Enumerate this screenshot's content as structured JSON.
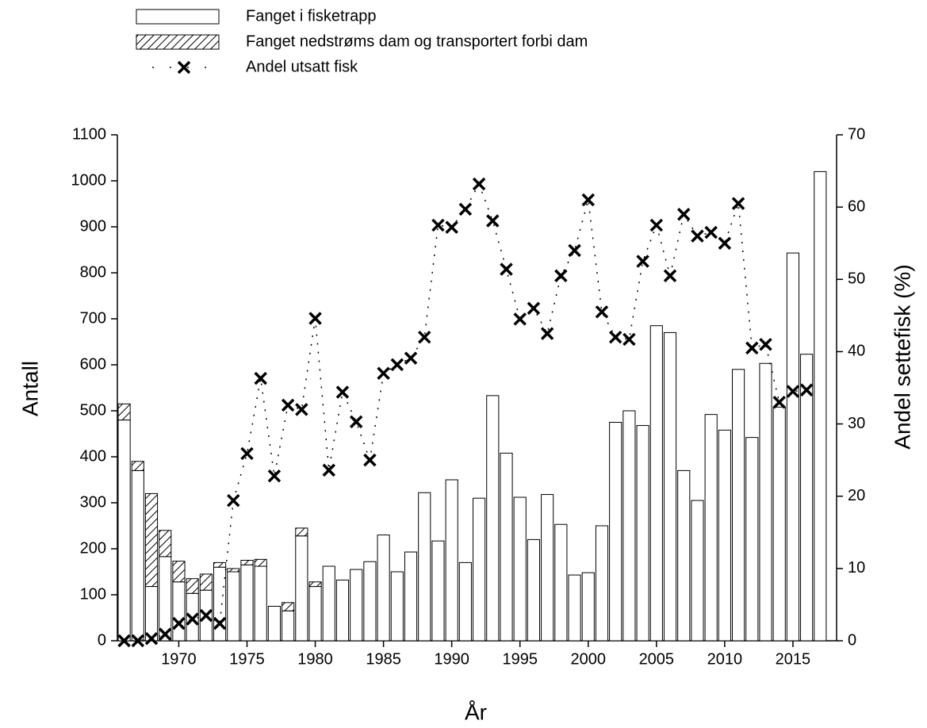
{
  "chart_data": {
    "type": "bar",
    "xlabel": "År",
    "ylabel": "Antall",
    "y2label": "Andel settefisk (%)",
    "x": [
      1966,
      1967,
      1968,
      1969,
      1970,
      1971,
      1972,
      1973,
      1974,
      1975,
      1976,
      1977,
      1978,
      1979,
      1980,
      1981,
      1982,
      1983,
      1984,
      1985,
      1986,
      1987,
      1988,
      1989,
      1990,
      1991,
      1992,
      1993,
      1994,
      1995,
      1996,
      1997,
      1998,
      1999,
      2000,
      2001,
      2002,
      2003,
      2004,
      2005,
      2006,
      2007,
      2008,
      2009,
      2010,
      2011,
      2012,
      2013,
      2014,
      2015,
      2016,
      2017
    ],
    "series": [
      {
        "name": "Fanget i fisketrapp",
        "color": "#ffffff",
        "stack": true,
        "values": [
          480,
          370,
          118,
          183,
          128,
          103,
          110,
          160,
          150,
          165,
          162,
          75,
          65,
          228,
          118,
          162,
          132,
          155,
          172,
          230,
          150,
          193,
          322,
          217,
          350,
          170,
          310,
          533,
          408,
          312,
          220,
          318,
          253,
          143,
          148,
          250,
          475,
          500,
          468,
          685,
          670,
          370,
          305,
          492,
          458,
          590,
          442,
          603,
          508,
          843,
          623,
          1020
        ]
      },
      {
        "name": "Fanget nedstrøms dam og transportert forbi dam",
        "color": "#000000",
        "hatch": true,
        "stack": true,
        "values": [
          35,
          20,
          202,
          57,
          45,
          32,
          35,
          10,
          7,
          10,
          15,
          null,
          18,
          17,
          10,
          null,
          null,
          null,
          null,
          null,
          null,
          null,
          null,
          null,
          null,
          null,
          null,
          null,
          null,
          null,
          null,
          null,
          null,
          null,
          null,
          null,
          null,
          null,
          null,
          null,
          null,
          null,
          null,
          null,
          null,
          null,
          null,
          null,
          null,
          null,
          null,
          null
        ]
      },
      {
        "name": "Andel utsatt fisk",
        "color": "#000000",
        "type": "line",
        "marker": "x",
        "axis": "y2",
        "values": [
          0,
          0,
          0.3,
          0.9,
          2.4,
          3,
          3.5,
          2.4,
          19.4,
          25.9,
          36.3,
          22.8,
          32.6,
          32,
          44.6,
          23.6,
          34.4,
          30.3,
          25,
          37,
          38.2,
          39.1,
          42,
          57.5,
          57.2,
          59.7,
          63.2,
          58.1,
          51.4,
          44.5,
          46,
          42.5,
          50.5,
          54,
          61,
          45.5,
          42,
          41.7,
          52.5,
          57.5,
          50.5,
          59,
          56,
          56.5,
          55,
          60.5,
          40.5,
          41,
          33,
          34.5,
          34.7,
          null
        ]
      }
    ],
    "xlim": [
      1965.5,
      2018.2
    ],
    "xticks": [
      1970,
      1975,
      1980,
      1985,
      1990,
      1995,
      2000,
      2005,
      2010,
      2015
    ],
    "ylim": [
      0,
      1100
    ],
    "yticks": [
      0,
      100,
      200,
      300,
      400,
      500,
      600,
      700,
      800,
      900,
      1000,
      1100
    ],
    "y2lim": [
      0,
      70
    ],
    "y2ticks": [
      0,
      10,
      20,
      30,
      40,
      50,
      60,
      70
    ],
    "grid": false
  }
}
